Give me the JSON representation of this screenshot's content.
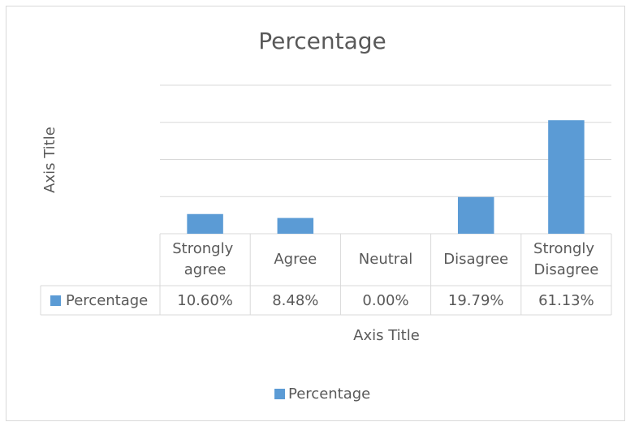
{
  "chart_data": {
    "type": "bar",
    "title": "Percentage",
    "y_axis_title": "Axis Title",
    "x_axis_title": "Axis Title",
    "categories": [
      "Strongly agree",
      "Agree",
      "Neutral",
      "Disagree",
      "Strongly Disagree"
    ],
    "series": [
      {
        "name": "Percentage",
        "color": "#5b9bd5",
        "values": [
          10.6,
          8.48,
          0,
          19.79,
          61.13
        ],
        "value_labels": [
          "10.60%",
          "8.48%",
          "0.00%",
          "19.79%",
          "61.13%"
        ]
      }
    ],
    "ylim": [
      0,
      80
    ],
    "yticks": [
      0,
      20,
      40,
      60,
      80
    ],
    "grid": true,
    "legend": "bottom"
  }
}
